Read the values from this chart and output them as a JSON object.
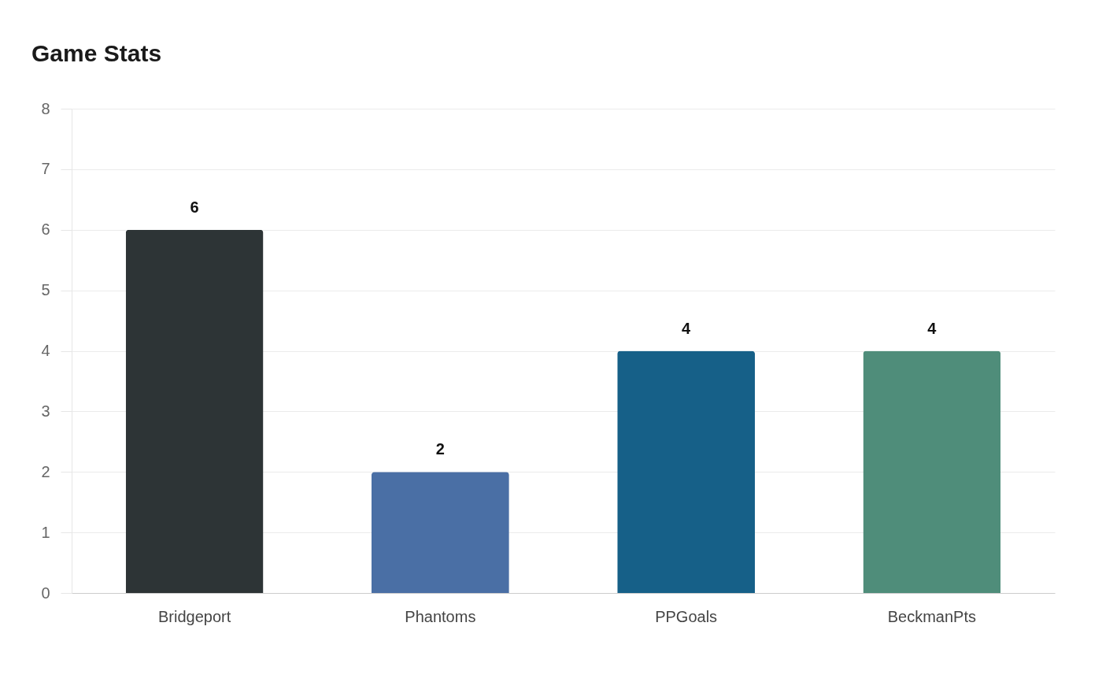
{
  "chart_data": {
    "type": "bar",
    "title": "Game Stats",
    "categories": [
      "Bridgeport",
      "Phantoms",
      "PPGoals",
      "BeckmanPts"
    ],
    "values": [
      6,
      2,
      4,
      4
    ],
    "colors": [
      "#2d3436",
      "#4a6fa5",
      "#166088",
      "#4f8d7a"
    ],
    "ylim": [
      0,
      8
    ],
    "yticks": [
      0,
      1,
      2,
      3,
      4,
      5,
      6,
      7,
      8
    ],
    "grid": "y",
    "data_labels": true
  }
}
